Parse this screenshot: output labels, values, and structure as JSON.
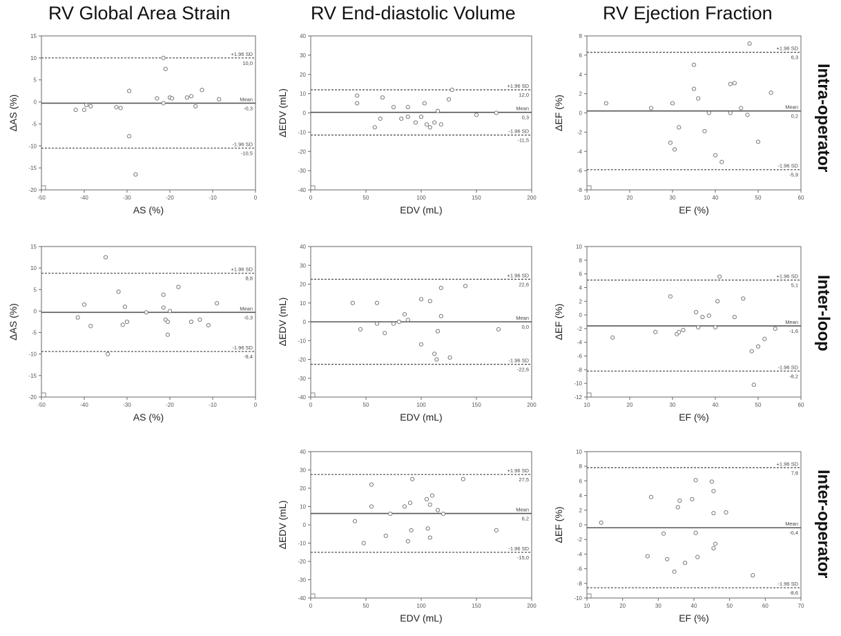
{
  "column_titles": [
    "RV Global Area Strain",
    "RV End-diastolic Volume",
    "RV Ejection Fraction"
  ],
  "row_labels": [
    "Intra-operator",
    "Inter-loop",
    "Inter-operator"
  ],
  "line_labels": {
    "upper": "+1.96 SD",
    "mean": "Mean",
    "lower": "-1.96 SD"
  },
  "chart_data": [
    {
      "type": "scatter",
      "xlabel": "AS (%)",
      "ylabel": "ΔAS (%)",
      "xlim": [
        -50,
        0
      ],
      "ylim": [
        -20,
        15
      ],
      "xticks": [
        -50,
        -40,
        -30,
        -20,
        -10,
        0
      ],
      "yticks": [
        -20,
        -15,
        -10,
        -5,
        0,
        5,
        10,
        15
      ],
      "upper": 10.0,
      "mean": -0.3,
      "lower": -10.5,
      "upper_label": "10,0",
      "mean_label": "-0,3",
      "lower_label": "-10,5",
      "points": [
        [
          -42,
          -1.8
        ],
        [
          -40,
          -1.8
        ],
        [
          -39.5,
          -0.7
        ],
        [
          -38.5,
          -1
        ],
        [
          -32.5,
          -1.2
        ],
        [
          -31.5,
          -1.4
        ],
        [
          -29.5,
          2.5
        ],
        [
          -29.5,
          -7.8
        ],
        [
          -28,
          -16.5
        ],
        [
          -23,
          0.8
        ],
        [
          -21.5,
          10
        ],
        [
          -21.5,
          -0.3
        ],
        [
          -21,
          7.5
        ],
        [
          -20,
          1
        ],
        [
          -19.5,
          0.8
        ],
        [
          -16,
          1
        ],
        [
          -15,
          1.3
        ],
        [
          -14,
          -1
        ],
        [
          -12.5,
          2.7
        ],
        [
          -8.5,
          0.6
        ]
      ]
    },
    {
      "type": "scatter",
      "xlabel": "EDV (mL)",
      "ylabel": "ΔEDV (mL)",
      "xlim": [
        0,
        200
      ],
      "ylim": [
        -40,
        40
      ],
      "xticks": [
        0,
        50,
        100,
        150,
        200
      ],
      "yticks": [
        -40,
        -30,
        -20,
        -10,
        0,
        10,
        20,
        30,
        40
      ],
      "upper": 12.0,
      "mean": 0.3,
      "lower": -11.5,
      "upper_label": "12,0",
      "mean_label": "0,3",
      "lower_label": "-11,5",
      "points": [
        [
          42,
          9
        ],
        [
          42,
          5
        ],
        [
          58,
          -7.5
        ],
        [
          63,
          -3
        ],
        [
          65,
          8
        ],
        [
          75,
          3
        ],
        [
          82,
          -3
        ],
        [
          88,
          3
        ],
        [
          88,
          -2
        ],
        [
          95,
          -5
        ],
        [
          100,
          -2
        ],
        [
          103,
          5
        ],
        [
          105,
          -6
        ],
        [
          108,
          -7.5
        ],
        [
          112,
          -5
        ],
        [
          115,
          1
        ],
        [
          118,
          -6
        ],
        [
          125,
          7
        ],
        [
          128,
          12
        ],
        [
          150,
          -1
        ],
        [
          168,
          0
        ]
      ]
    },
    {
      "type": "scatter",
      "xlabel": "EF (%)",
      "ylabel": "ΔEF (%)",
      "xlim": [
        10,
        60
      ],
      "ylim": [
        -8,
        8
      ],
      "xticks": [
        10,
        20,
        30,
        40,
        50,
        60
      ],
      "yticks": [
        -8,
        -6,
        -4,
        -2,
        0,
        2,
        4,
        6,
        8
      ],
      "upper": 6.3,
      "mean": 0.2,
      "lower": -5.9,
      "upper_label": "6,3",
      "mean_label": "0,2",
      "lower_label": "-5,9",
      "points": [
        [
          14.5,
          1
        ],
        [
          25,
          0.5
        ],
        [
          29.5,
          -3.1
        ],
        [
          30.5,
          -3.8
        ],
        [
          30,
          1
        ],
        [
          31.5,
          -1.5
        ],
        [
          35,
          5
        ],
        [
          35,
          2.5
        ],
        [
          36,
          1.5
        ],
        [
          37.5,
          -1.9
        ],
        [
          38.5,
          0
        ],
        [
          40,
          -4.4
        ],
        [
          41.5,
          -5.1
        ],
        [
          43.5,
          3
        ],
        [
          43.5,
          0
        ],
        [
          44.5,
          3.1
        ],
        [
          46,
          0.5
        ],
        [
          48,
          7.2
        ],
        [
          47.5,
          -0.2
        ],
        [
          50,
          -3
        ],
        [
          53,
          2.1
        ]
      ]
    },
    {
      "type": "scatter",
      "xlabel": "AS (%)",
      "ylabel": "ΔAS (%)",
      "xlim": [
        -50,
        0
      ],
      "ylim": [
        -20,
        15
      ],
      "xticks": [
        -50,
        -40,
        -30,
        -20,
        -10,
        0
      ],
      "yticks": [
        -20,
        -15,
        -10,
        -5,
        0,
        5,
        10,
        15
      ],
      "upper": 8.8,
      "mean": -0.3,
      "lower": -9.4,
      "upper_label": "8,8",
      "mean_label": "-0,3",
      "lower_label": "-9,4",
      "points": [
        [
          -41.5,
          -1.5
        ],
        [
          -40,
          1.5
        ],
        [
          -38.5,
          -3.5
        ],
        [
          -35,
          12.5
        ],
        [
          -34.5,
          -10
        ],
        [
          -32,
          4.5
        ],
        [
          -30.5,
          1
        ],
        [
          -31,
          -3.2
        ],
        [
          -30,
          -2.5
        ],
        [
          -25.5,
          -0.3
        ],
        [
          -21.5,
          3.8
        ],
        [
          -21.5,
          0.8
        ],
        [
          -21,
          -2
        ],
        [
          -20.5,
          -5.5
        ],
        [
          -20.5,
          -2.5
        ],
        [
          -20,
          0
        ],
        [
          -18,
          5.6
        ],
        [
          -15,
          -2.5
        ],
        [
          -13,
          -2
        ],
        [
          -11,
          -3.3
        ],
        [
          -9,
          1.8
        ]
      ]
    },
    {
      "type": "scatter",
      "xlabel": "EDV (mL)",
      "ylabel": "ΔEDV (mL)",
      "xlim": [
        0,
        200
      ],
      "ylim": [
        -40,
        40
      ],
      "xticks": [
        0,
        50,
        100,
        150,
        200
      ],
      "yticks": [
        -40,
        -30,
        -20,
        -10,
        0,
        10,
        20,
        30,
        40
      ],
      "upper": 22.6,
      "mean": 0.0,
      "lower": -22.6,
      "upper_label": "22,6",
      "mean_label": "0,0",
      "lower_label": "-22,6",
      "points": [
        [
          38,
          10
        ],
        [
          45,
          -4
        ],
        [
          60,
          -1
        ],
        [
          60,
          10
        ],
        [
          67,
          -6
        ],
        [
          75,
          -1
        ],
        [
          80,
          0
        ],
        [
          85,
          4
        ],
        [
          88,
          1
        ],
        [
          100,
          12
        ],
        [
          100,
          -12
        ],
        [
          108,
          11
        ],
        [
          112,
          -17
        ],
        [
          114,
          -20
        ],
        [
          115,
          -5
        ],
        [
          118,
          18
        ],
        [
          118,
          3
        ],
        [
          126,
          -19
        ],
        [
          140,
          19
        ],
        [
          170,
          -4
        ]
      ]
    },
    {
      "type": "scatter",
      "xlabel": "EF (%)",
      "ylabel": "ΔEF (%)",
      "xlim": [
        10,
        60
      ],
      "ylim": [
        -12,
        10
      ],
      "xticks": [
        10,
        20,
        30,
        40,
        50,
        60
      ],
      "yticks": [
        -12,
        -10,
        -8,
        -6,
        -4,
        -2,
        0,
        2,
        4,
        6,
        8,
        10
      ],
      "upper": 5.1,
      "mean": -1.6,
      "lower": -8.2,
      "upper_label": "5,1",
      "mean_label": "-1,6",
      "lower_label": "-8,2",
      "points": [
        [
          16,
          -3.3
        ],
        [
          26,
          -2.5
        ],
        [
          29.5,
          2.7
        ],
        [
          31,
          -2.8
        ],
        [
          31.5,
          -2.5
        ],
        [
          32.5,
          -2.2
        ],
        [
          35.5,
          0.4
        ],
        [
          36,
          -1.8
        ],
        [
          37,
          -0.3
        ],
        [
          38.5,
          -0.1
        ],
        [
          40,
          -1.8
        ],
        [
          40.5,
          2
        ],
        [
          41,
          5.6
        ],
        [
          44.5,
          -0.3
        ],
        [
          46.5,
          2.4
        ],
        [
          48.5,
          -5.3
        ],
        [
          49,
          -10.2
        ],
        [
          50,
          -4.6
        ],
        [
          51.5,
          -3.5
        ],
        [
          54,
          -2
        ]
      ]
    },
    {
      "type": "scatter",
      "xlabel": "EDV (mL)",
      "ylabel": "ΔEDV (mL)",
      "xlim": [
        0,
        200
      ],
      "ylim": [
        -40,
        40
      ],
      "xticks": [
        0,
        50,
        100,
        150,
        200
      ],
      "yticks": [
        -40,
        -30,
        -20,
        -10,
        0,
        10,
        20,
        30,
        40
      ],
      "upper": 27.5,
      "mean": 6.2,
      "lower": -15.0,
      "upper_label": "27,5",
      "mean_label": "6,2",
      "lower_label": "-15,0",
      "points": [
        [
          40,
          2
        ],
        [
          48,
          -10
        ],
        [
          55,
          22
        ],
        [
          55,
          10
        ],
        [
          68,
          -6
        ],
        [
          72,
          6
        ],
        [
          85,
          10
        ],
        [
          88,
          -9
        ],
        [
          90,
          12
        ],
        [
          91,
          -3
        ],
        [
          92,
          25
        ],
        [
          105,
          14
        ],
        [
          106,
          -2
        ],
        [
          108,
          -7
        ],
        [
          108,
          11
        ],
        [
          110,
          16
        ],
        [
          115,
          8
        ],
        [
          120,
          6
        ],
        [
          138,
          25
        ],
        [
          168,
          -3
        ]
      ]
    },
    {
      "type": "scatter",
      "xlabel": "EF (%)",
      "ylabel": "ΔEF (%)",
      "xlim": [
        10,
        70
      ],
      "ylim": [
        -10,
        10
      ],
      "xticks": [
        10,
        20,
        30,
        40,
        50,
        60,
        70
      ],
      "yticks": [
        -10,
        -8,
        -6,
        -4,
        -2,
        0,
        2,
        4,
        6,
        8,
        10
      ],
      "upper": 7.8,
      "mean": -0.4,
      "lower": -8.6,
      "upper_label": "7,8",
      "mean_label": "-0,4",
      "lower_label": "-8,6",
      "points": [
        [
          14,
          0.3
        ],
        [
          27,
          -4.3
        ],
        [
          28,
          3.8
        ],
        [
          31.5,
          -1.2
        ],
        [
          32.5,
          -4.7
        ],
        [
          34.5,
          -6.4
        ],
        [
          35.5,
          2.4
        ],
        [
          36,
          3.3
        ],
        [
          37.5,
          -5.2
        ],
        [
          39.5,
          3.5
        ],
        [
          40.5,
          -1.1
        ],
        [
          40.5,
          6.1
        ],
        [
          41,
          -4.4
        ],
        [
          45,
          5.9
        ],
        [
          45.5,
          4.6
        ],
        [
          45.5,
          1.6
        ],
        [
          46,
          -2.6
        ],
        [
          45.5,
          -3.2
        ],
        [
          49,
          1.7
        ],
        [
          56.5,
          -6.9
        ]
      ]
    }
  ]
}
